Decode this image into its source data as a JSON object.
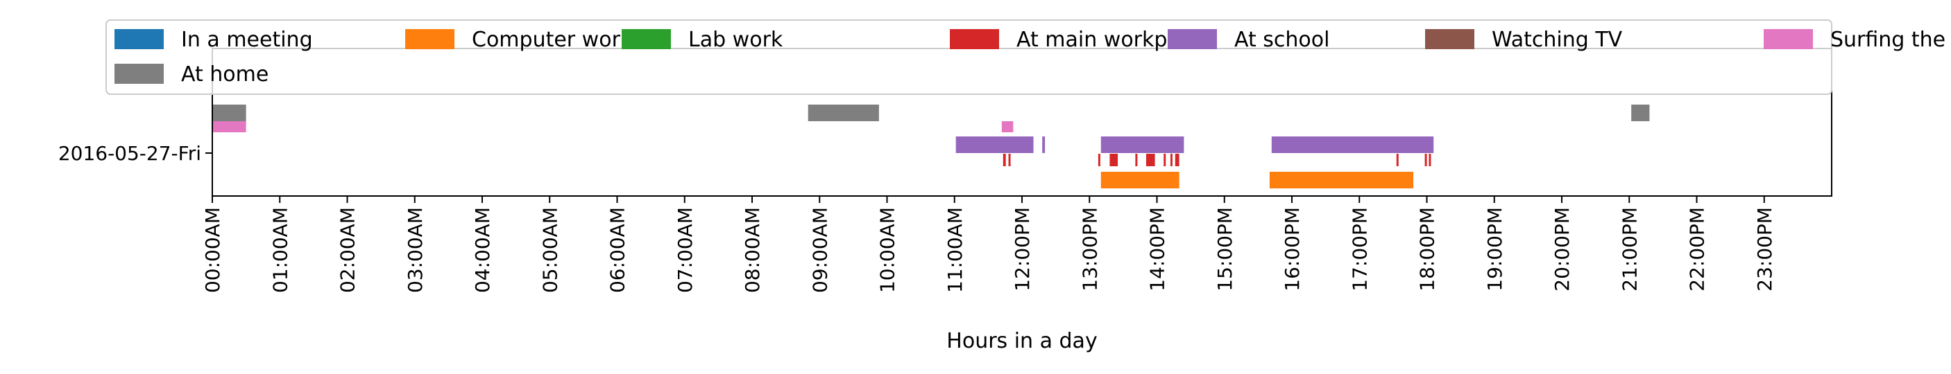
{
  "chart_data": {
    "type": "timeline",
    "xlabel": "Hours in a day",
    "y_categories": [
      "2016-05-27-Fri"
    ],
    "x_range_hours": [
      0,
      24
    ],
    "x_ticks": [
      "00:00AM",
      "01:00AM",
      "02:00AM",
      "03:00AM",
      "04:00AM",
      "05:00AM",
      "06:00AM",
      "07:00AM",
      "08:00AM",
      "09:00AM",
      "10:00AM",
      "11:00AM",
      "12:00PM",
      "13:00PM",
      "14:00PM",
      "15:00PM",
      "16:00PM",
      "17:00PM",
      "18:00PM",
      "19:00PM",
      "20:00PM",
      "21:00PM",
      "22:00PM",
      "23:00PM"
    ],
    "legend_position": "top",
    "grid": false,
    "series": [
      {
        "name": "In a meeting",
        "color": "#1f77b4",
        "intervals": []
      },
      {
        "name": "Computer work",
        "color": "#ff7f0e",
        "intervals": [
          [
            13.17,
            14.33
          ],
          [
            15.67,
            17.8
          ]
        ]
      },
      {
        "name": "Lab work",
        "color": "#2ca02c",
        "intervals": []
      },
      {
        "name": "At main workplace",
        "color": "#d62728",
        "intervals": [
          [
            11.72,
            11.76
          ],
          [
            11.8,
            11.83
          ],
          [
            13.13,
            13.16
          ],
          [
            13.3,
            13.42
          ],
          [
            13.68,
            13.71
          ],
          [
            13.84,
            13.97
          ],
          [
            14.1,
            14.13
          ],
          [
            14.2,
            14.23
          ],
          [
            14.27,
            14.33
          ],
          [
            17.55,
            17.58
          ],
          [
            17.97,
            18.0
          ],
          [
            18.03,
            18.06
          ]
        ]
      },
      {
        "name": "At school",
        "color": "#9467bd",
        "intervals": [
          [
            11.02,
            12.17
          ],
          [
            12.3,
            12.34
          ],
          [
            13.17,
            14.4
          ],
          [
            15.7,
            18.1
          ]
        ]
      },
      {
        "name": "Watching TV",
        "color": "#8c564b",
        "intervals": []
      },
      {
        "name": "Surfing the internet",
        "color": "#e377c2",
        "intervals": [
          [
            0.0,
            0.5
          ],
          [
            11.7,
            11.87
          ]
        ]
      },
      {
        "name": "At home",
        "color": "#7f7f7f",
        "intervals": [
          [
            0.0,
            0.5
          ],
          [
            8.83,
            9.88
          ],
          [
            21.03,
            21.3
          ]
        ]
      }
    ]
  }
}
